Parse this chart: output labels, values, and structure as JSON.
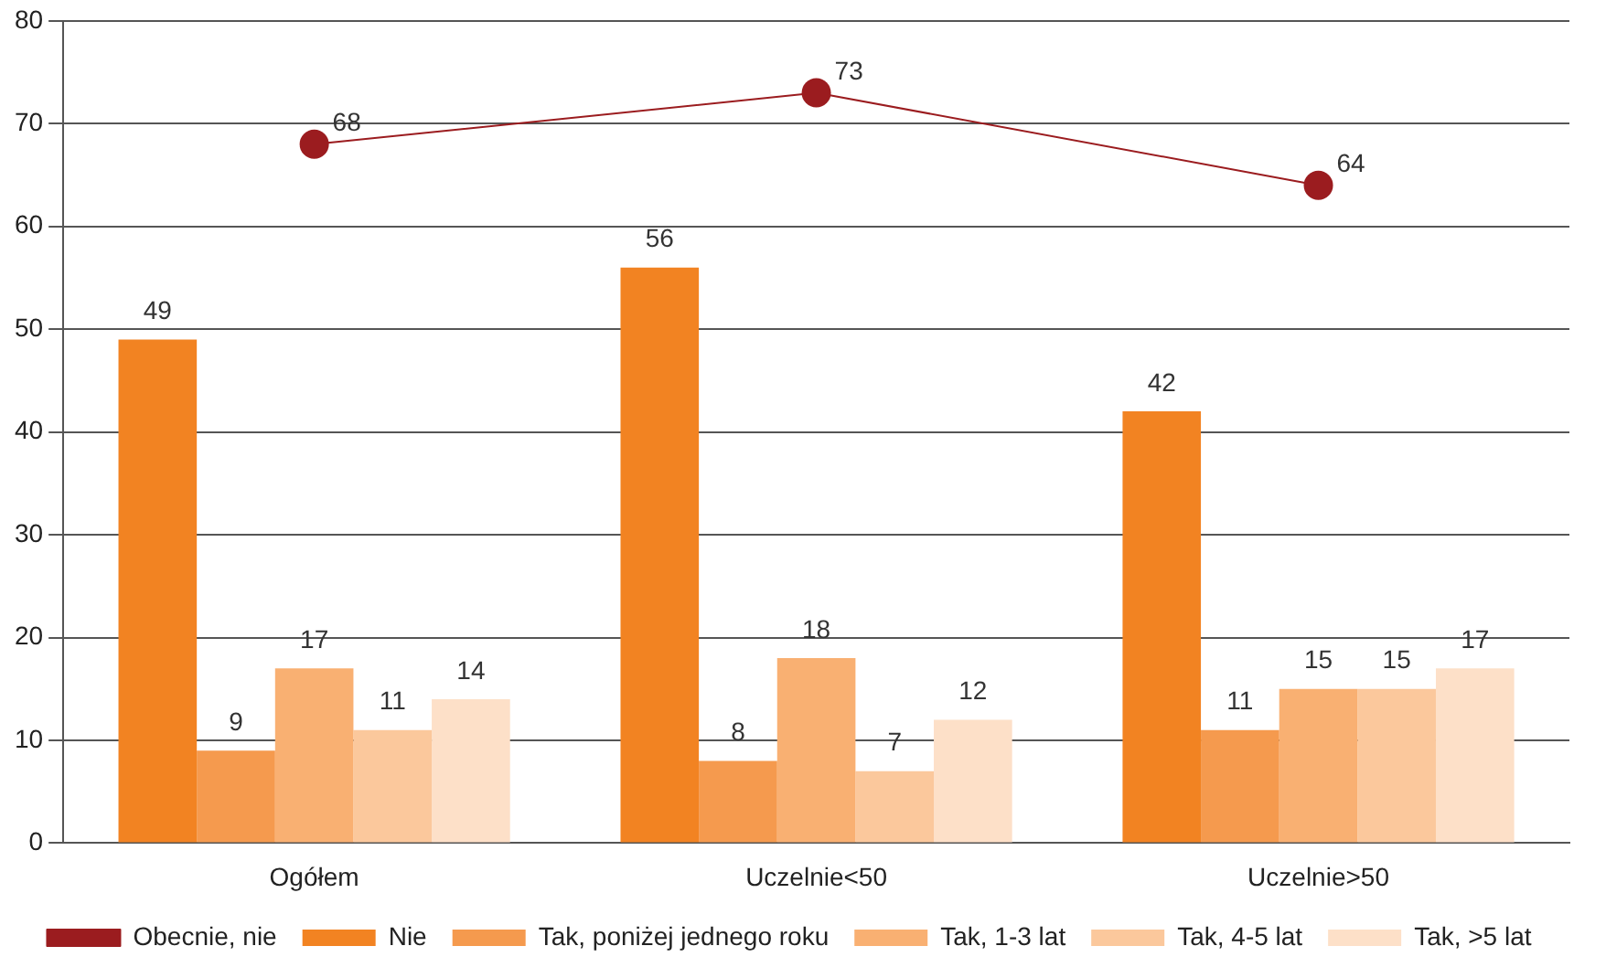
{
  "chart_data": {
    "type": "bar",
    "categories": [
      "Ogółem",
      "Uczelnie<50",
      "Uczelnie>50"
    ],
    "series": [
      {
        "name": "Nie",
        "color": "#f28322",
        "values": [
          49,
          56,
          42
        ]
      },
      {
        "name": "Tak, poniżej jednego roku",
        "color": "#f59a4e",
        "values": [
          9,
          8,
          11
        ]
      },
      {
        "name": "Tak, 1-3 lat",
        "color": "#f9b072",
        "values": [
          17,
          18,
          15
        ]
      },
      {
        "name": "Tak, 4-5 lat",
        "color": "#fbc89c",
        "values": [
          11,
          7,
          15
        ]
      },
      {
        "name": "Tak, >5 lat",
        "color": "#fde0c8",
        "values": [
          14,
          12,
          17
        ]
      },
      {
        "name": "Obecnie, nie",
        "type": "line",
        "color": "#9b1c1f",
        "values": [
          68,
          73,
          64
        ],
        "marker": "circle"
      }
    ],
    "ylim": [
      0,
      80
    ],
    "yticks": [
      0,
      10,
      20,
      30,
      40,
      50,
      60,
      70,
      80
    ],
    "grid": "y",
    "legend": "bottom",
    "data_labels": true
  }
}
